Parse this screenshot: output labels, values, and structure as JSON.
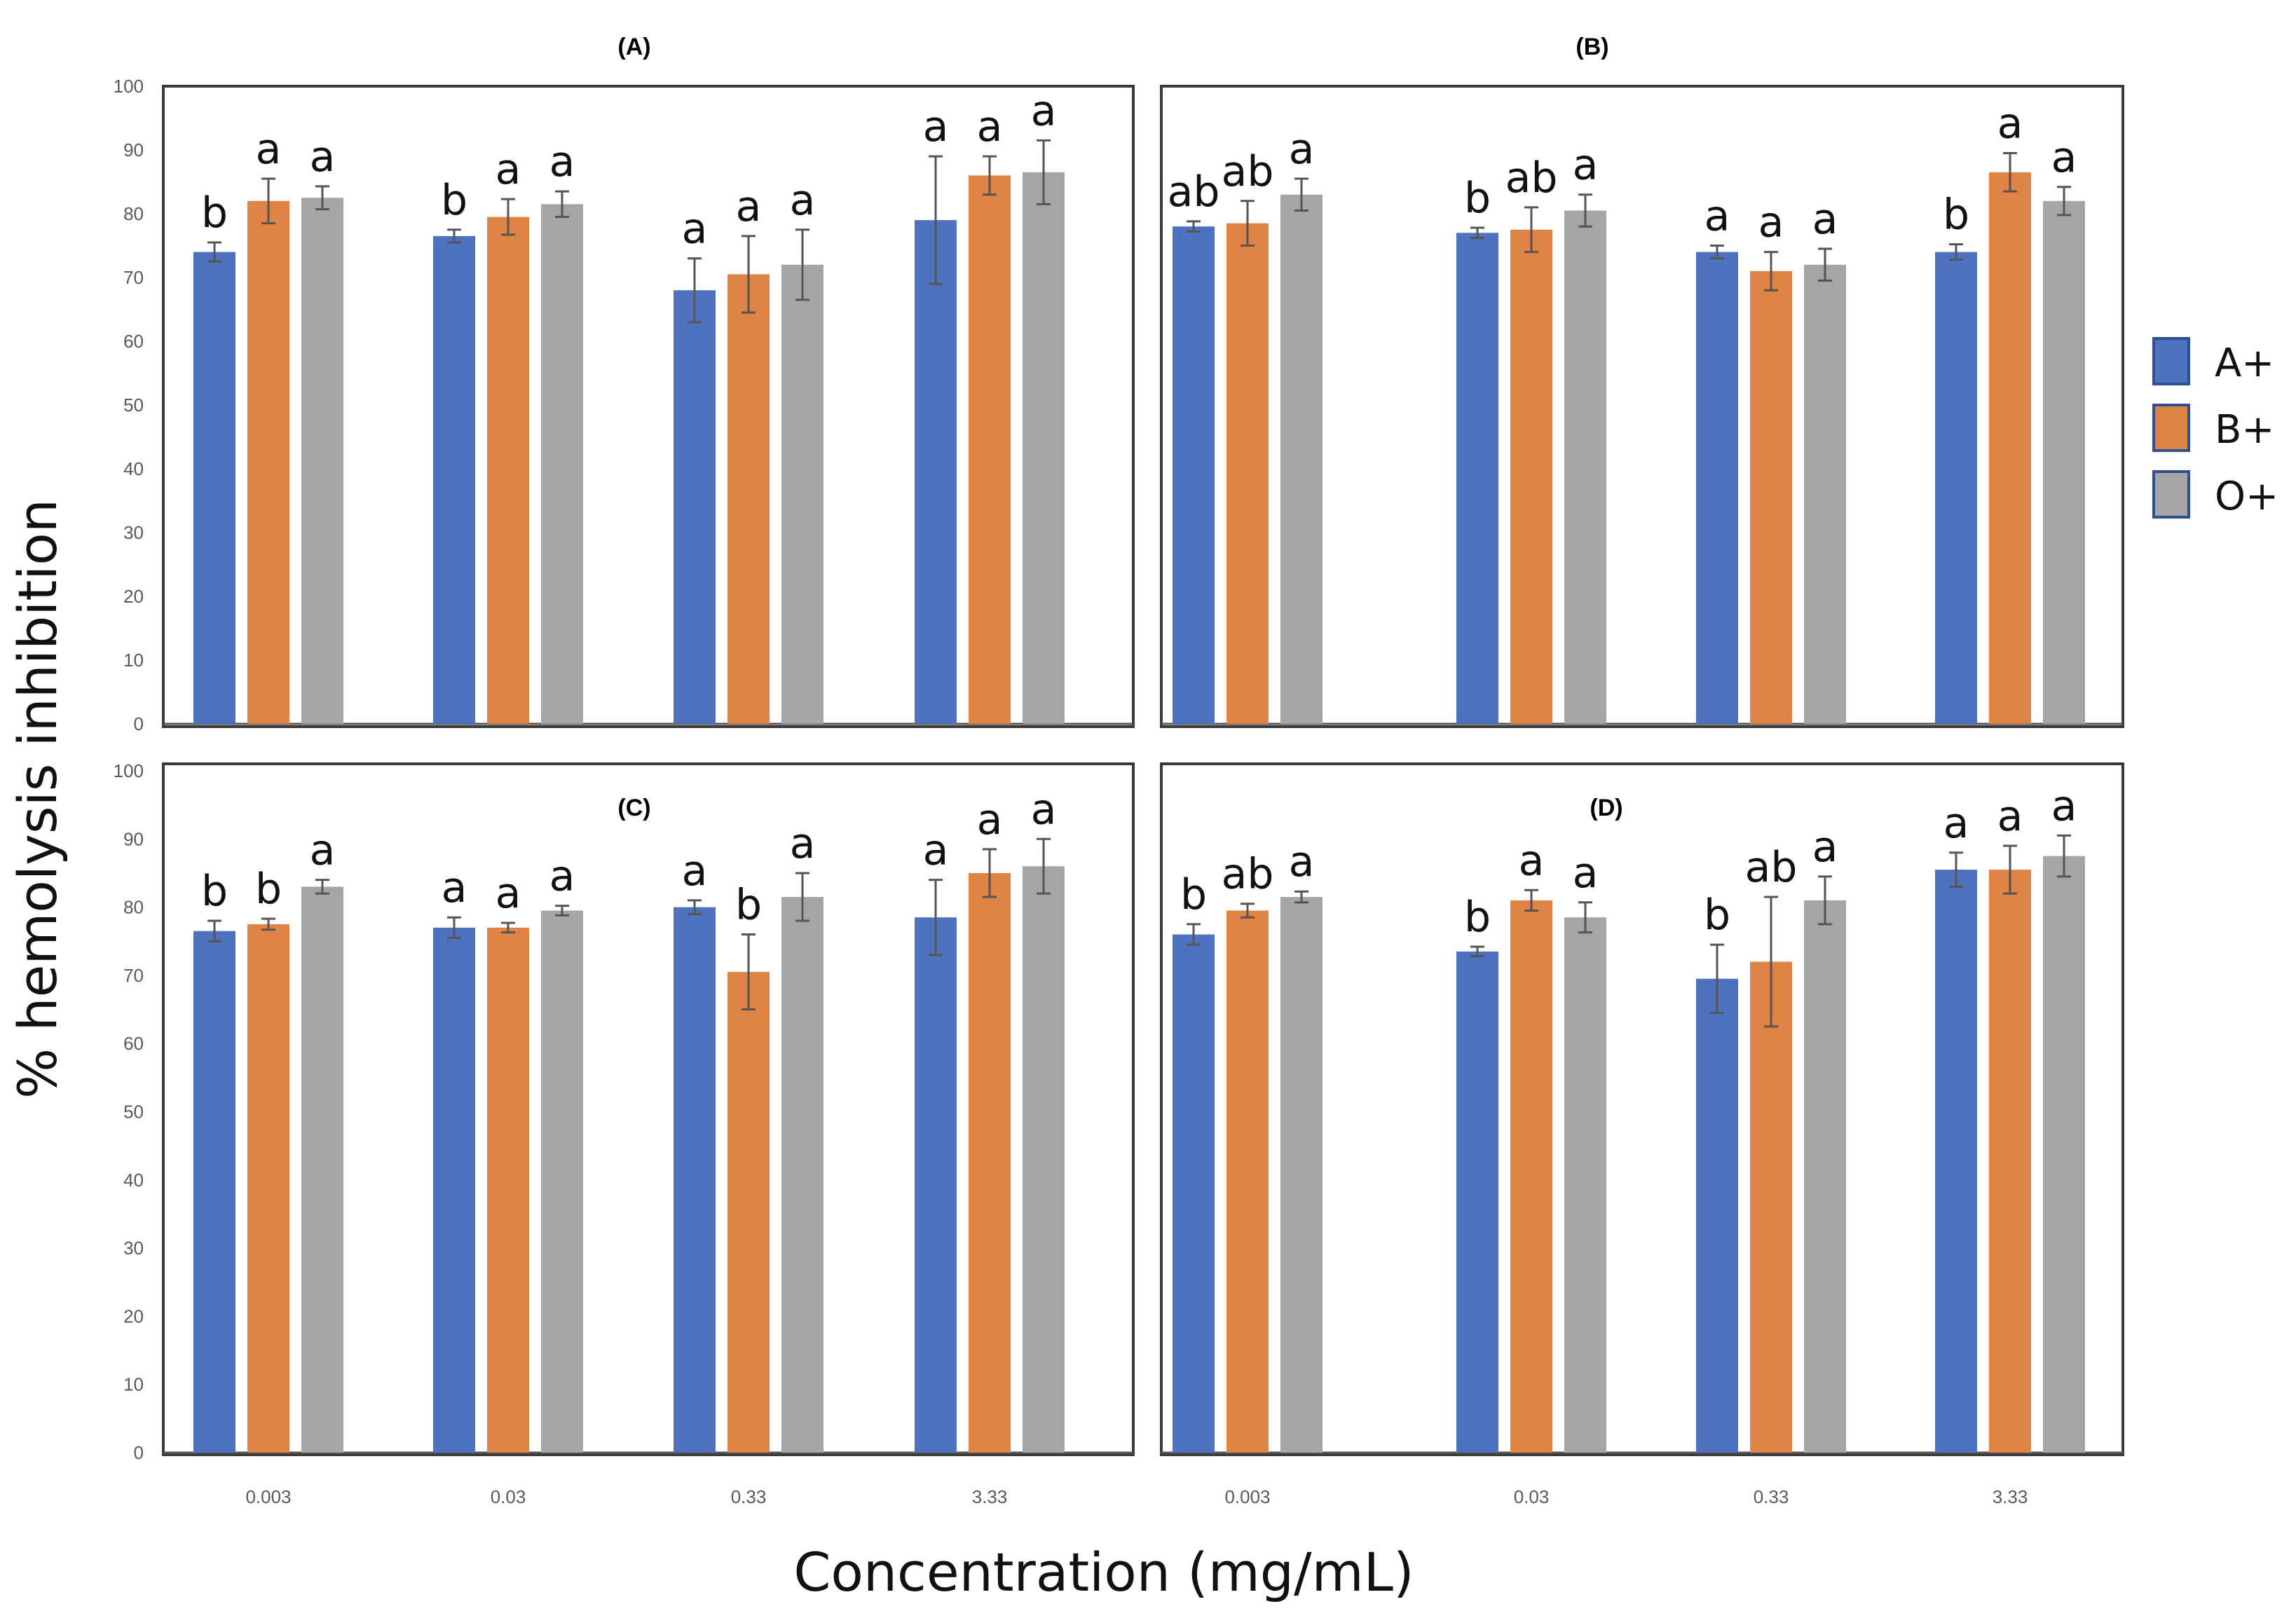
{
  "figure": {
    "ylabel": "% hemolysis inhibition",
    "xlabel": "Concentration (mg/mL)"
  },
  "colors": {
    "A+": "#4f72be",
    "B+": "#df8444",
    "O+": "#a5a5a5",
    "frame": "#3a3a3a",
    "error_bar": "#555555"
  },
  "legend": [
    {
      "name": "A+",
      "color": "#4f72be"
    },
    {
      "name": "B+",
      "color": "#df8444"
    },
    {
      "name": "O+",
      "color": "#a5a5a5"
    }
  ],
  "chart_data": [
    {
      "type": "bar",
      "title": "(A)",
      "categories": [
        "0.003",
        "0.03",
        "0.33",
        "3.33"
      ],
      "show_x_ticks": false,
      "ylim": [
        0,
        100
      ],
      "yticks": [
        0,
        10,
        20,
        30,
        40,
        50,
        60,
        70,
        80,
        90,
        100
      ],
      "series": [
        {
          "name": "A+",
          "values": [
            74,
            76.5,
            68,
            79
          ],
          "errors": [
            1.5,
            1,
            5,
            10
          ],
          "labels": [
            "b",
            "b",
            "a",
            "a"
          ]
        },
        {
          "name": "B+",
          "values": [
            82,
            79.5,
            70.5,
            86
          ],
          "errors": [
            3.5,
            2.8,
            6,
            3
          ],
          "labels": [
            "a",
            "a",
            "a",
            "a"
          ]
        },
        {
          "name": "O+",
          "values": [
            82.5,
            81.5,
            72,
            86.5
          ],
          "errors": [
            1.8,
            2,
            5.5,
            5
          ],
          "labels": [
            "a",
            "a",
            "a",
            "a"
          ]
        }
      ]
    },
    {
      "type": "bar",
      "title": "(B)",
      "categories": [
        "0.003",
        "0.03",
        "0.33",
        "3.33"
      ],
      "show_x_ticks": false,
      "ylim": [
        0,
        100
      ],
      "yticks": [],
      "series": [
        {
          "name": "A+",
          "values": [
            78,
            77,
            74,
            74
          ],
          "errors": [
            0.8,
            0.8,
            1,
            1.2
          ],
          "labels": [
            "ab",
            "b",
            "a",
            "b"
          ]
        },
        {
          "name": "B+",
          "values": [
            78.5,
            77.5,
            71,
            86.5
          ],
          "errors": [
            3.5,
            3.5,
            3,
            3
          ],
          "labels": [
            "ab",
            "ab",
            "a",
            "a"
          ]
        },
        {
          "name": "O+",
          "values": [
            83,
            80.5,
            72,
            82
          ],
          "errors": [
            2.5,
            2.5,
            2.5,
            2.2
          ],
          "labels": [
            "a",
            "a",
            "a",
            "a"
          ]
        }
      ]
    },
    {
      "type": "bar",
      "title": "(C)",
      "categories": [
        "0.003",
        "0.03",
        "0.33",
        "3.33"
      ],
      "show_x_ticks": true,
      "ylim": [
        0,
        100
      ],
      "yticks": [
        0,
        10,
        20,
        30,
        40,
        50,
        60,
        70,
        80,
        90,
        100
      ],
      "series": [
        {
          "name": "A+",
          "values": [
            76.5,
            77,
            80,
            78.5
          ],
          "errors": [
            1.5,
            1.5,
            1,
            5.5
          ],
          "labels": [
            "b",
            "a",
            "a",
            "a"
          ]
        },
        {
          "name": "B+",
          "values": [
            77.5,
            77,
            70.5,
            85
          ],
          "errors": [
            0.8,
            0.7,
            5.5,
            3.5
          ],
          "labels": [
            "b",
            "a",
            "b",
            "a"
          ]
        },
        {
          "name": "O+",
          "values": [
            83,
            79.5,
            81.5,
            86
          ],
          "errors": [
            1,
            0.7,
            3.5,
            4
          ],
          "labels": [
            "a",
            "a",
            "a",
            "a"
          ]
        }
      ]
    },
    {
      "type": "bar",
      "title": "(D)",
      "categories": [
        "0.003",
        "0.03",
        "0.33",
        "3.33"
      ],
      "show_x_ticks": true,
      "ylim": [
        0,
        100
      ],
      "yticks": [],
      "series": [
        {
          "name": "A+",
          "values": [
            76,
            73.5,
            69.5,
            85.5
          ],
          "errors": [
            1.5,
            0.7,
            5,
            2.5
          ],
          "labels": [
            "b",
            "b",
            "b",
            "a"
          ]
        },
        {
          "name": "B+",
          "values": [
            79.5,
            81,
            72,
            85.5
          ],
          "errors": [
            1,
            1.5,
            9.5,
            3.5
          ],
          "labels": [
            "ab",
            "a",
            "ab",
            "a"
          ]
        },
        {
          "name": "O+",
          "values": [
            81.5,
            78.5,
            81,
            87.5
          ],
          "errors": [
            0.8,
            2.2,
            3.5,
            3
          ],
          "labels": [
            "a",
            "a",
            "a",
            "a"
          ]
        }
      ]
    }
  ]
}
